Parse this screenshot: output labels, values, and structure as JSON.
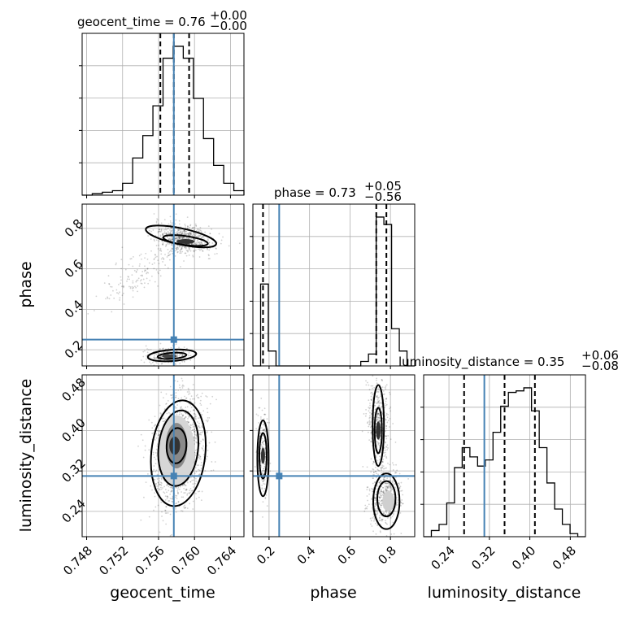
{
  "chart_data": {
    "type": "corner",
    "params": [
      "geocent_time",
      "phase",
      "luminosity_distance"
    ],
    "truth": {
      "geocent_time": 0.7577,
      "phase": 0.25,
      "luminosity_distance": 0.31
    },
    "titles": {
      "geocent_time": {
        "prefix": "geocent_time = 0.76",
        "plus": "+0.00",
        "minus": "−0.00"
      },
      "phase": {
        "prefix": "phase = 0.73",
        "plus": "+0.05",
        "minus": "−0.56"
      },
      "luminosity_distance": {
        "prefix": "luminosity_distance = 0.35",
        "plus": "+0.06",
        "minus": "−0.08"
      }
    },
    "axes": {
      "geocent_time": {
        "range": [
          0.7475,
          0.7655
        ],
        "ticks": [
          "0.748",
          "0.752",
          "0.756",
          "0.760",
          "0.764"
        ],
        "tickvals": [
          0.748,
          0.752,
          0.756,
          0.76,
          0.764
        ],
        "quantiles": [
          0.7562,
          0.7577,
          0.7594
        ]
      },
      "phase": {
        "range": [
          0.12,
          0.92
        ],
        "ticks": [
          "0.2",
          "0.4",
          "0.6",
          "0.8"
        ],
        "tickvals": [
          0.2,
          0.4,
          0.6,
          0.8
        ],
        "quantiles": [
          0.17,
          0.73,
          0.78
        ]
      },
      "luminosity_distance": {
        "range": [
          0.19,
          0.51
        ],
        "ticks": [
          "0.24",
          "0.32",
          "0.40",
          "0.48"
        ],
        "tickvals": [
          0.24,
          0.32,
          0.4,
          0.48
        ],
        "quantiles": [
          0.27,
          0.35,
          0.41
        ]
      }
    },
    "hist_geocent_time": [
      0,
      1,
      2,
      3,
      8,
      25,
      40,
      60,
      92,
      100,
      92,
      65,
      38,
      20,
      8,
      3
    ],
    "hist_phase": [
      0,
      55,
      10,
      0,
      0,
      0,
      0,
      0,
      0,
      0,
      0,
      0,
      0,
      0,
      3,
      8,
      100,
      95,
      25,
      10,
      0
    ],
    "hist_luminosity_distance": [
      0,
      4,
      8,
      22,
      45,
      58,
      52,
      46,
      50,
      68,
      85,
      94,
      95,
      97,
      82,
      58,
      35,
      18,
      8,
      2,
      0
    ],
    "xlabels": [
      "geocent_time",
      "phase",
      "luminosity_distance"
    ],
    "ylabels": [
      "phase",
      "luminosity_distance"
    ]
  }
}
